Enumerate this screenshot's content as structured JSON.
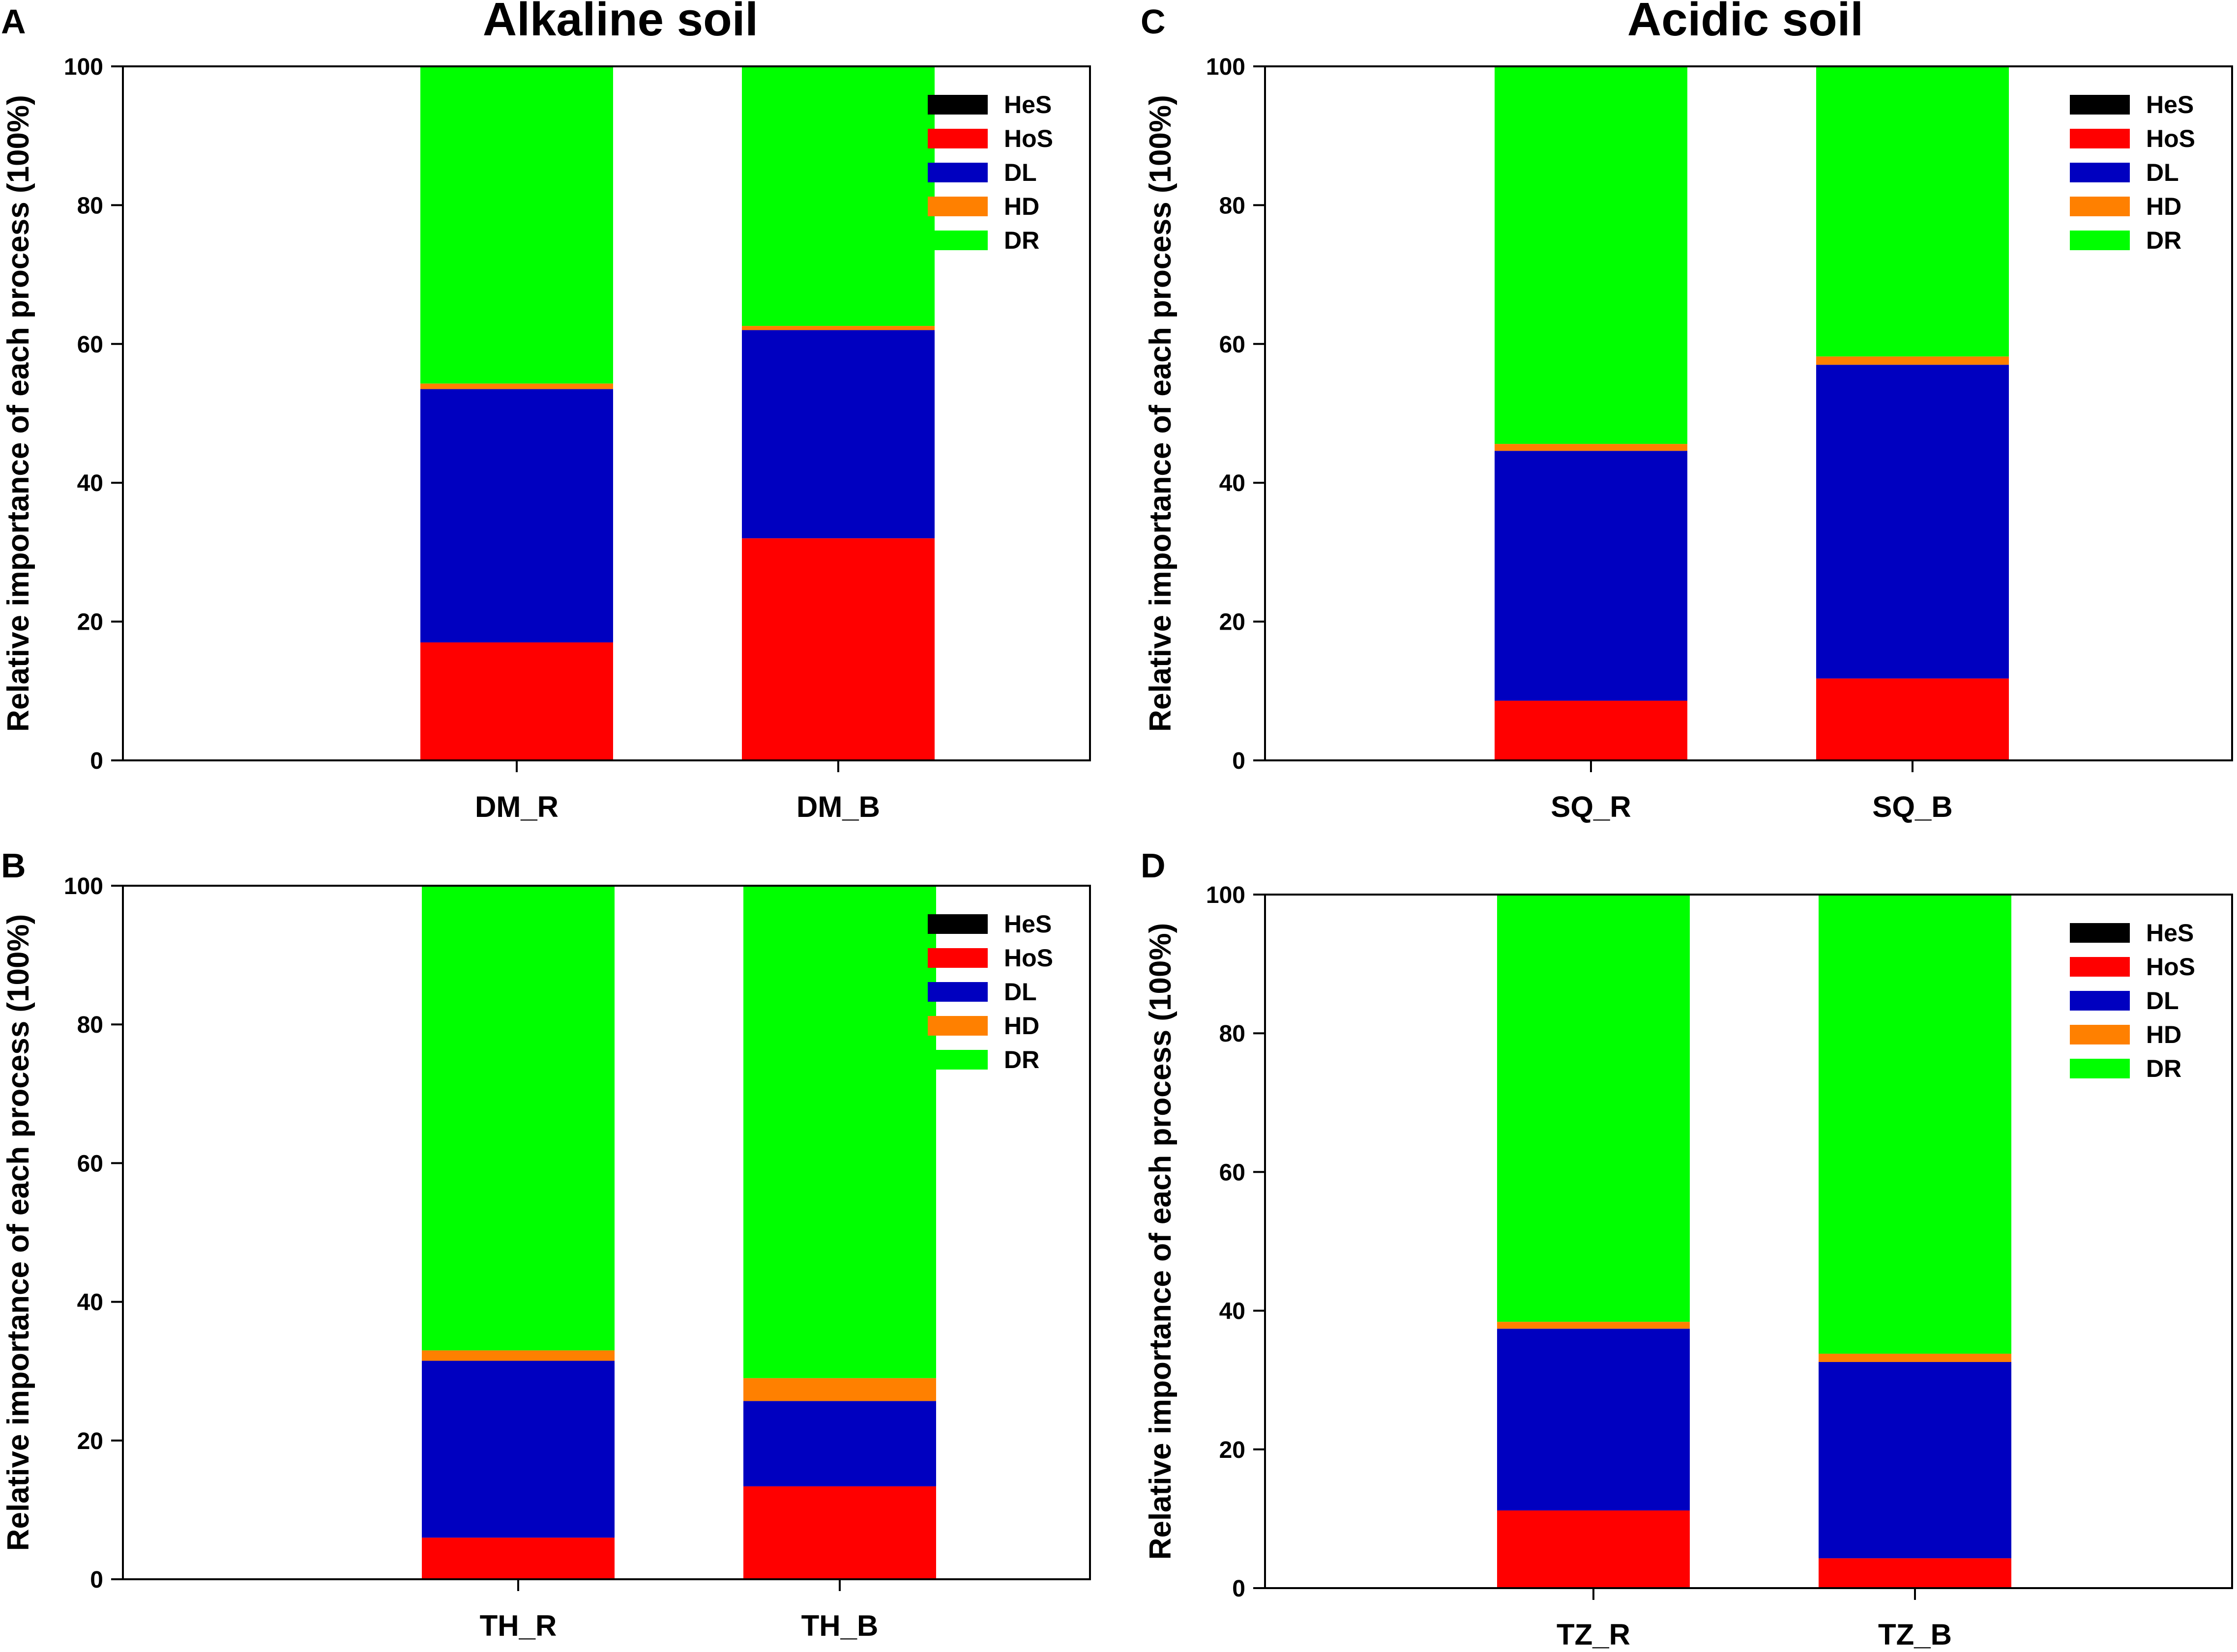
{
  "figure": {
    "titles": [
      {
        "id": "alkaline",
        "text": "Alkaline soil"
      },
      {
        "id": "acidic",
        "text": "Acidic soil"
      }
    ]
  },
  "chart_data": [
    {
      "type": "bar",
      "stacked": true,
      "panel": "A",
      "categories": [
        "DM_R",
        "DM_B"
      ],
      "ylabel": "Relative importance of each process (100%)",
      "ylim": [
        0,
        100
      ],
      "yticks": [
        0,
        20,
        40,
        60,
        80,
        100
      ],
      "legend_position": "top-right",
      "series": [
        {
          "name": "HeS",
          "color": "#000000",
          "values": [
            0,
            0
          ]
        },
        {
          "name": "HoS",
          "color": "#ff0000",
          "values": [
            17,
            32
          ]
        },
        {
          "name": "DL",
          "color": "#0000c0",
          "values": [
            36.5,
            30
          ]
        },
        {
          "name": "HD",
          "color": "#ff8000",
          "values": [
            0.8,
            0.6
          ]
        },
        {
          "name": "DR",
          "color": "#00ff00",
          "values": [
            45.7,
            37.4
          ]
        }
      ]
    },
    {
      "type": "bar",
      "stacked": true,
      "panel": "B",
      "categories": [
        "TH_R",
        "TH_B"
      ],
      "ylabel": "Relative importance of each process (100%)",
      "ylim": [
        0,
        100
      ],
      "yticks": [
        0,
        20,
        40,
        60,
        80,
        100
      ],
      "legend_position": "top-right",
      "series": [
        {
          "name": "HeS",
          "color": "#000000",
          "values": [
            0,
            0
          ]
        },
        {
          "name": "HoS",
          "color": "#ff0000",
          "values": [
            6,
            13.4
          ]
        },
        {
          "name": "DL",
          "color": "#0000c0",
          "values": [
            25.5,
            12.3
          ]
        },
        {
          "name": "HD",
          "color": "#ff8000",
          "values": [
            1.5,
            3.3
          ]
        },
        {
          "name": "DR",
          "color": "#00ff00",
          "values": [
            67,
            71
          ]
        }
      ]
    },
    {
      "type": "bar",
      "stacked": true,
      "panel": "C",
      "categories": [
        "SQ_R",
        "SQ_B"
      ],
      "ylabel": "Relative importance of each process (100%)",
      "ylim": [
        0,
        100
      ],
      "yticks": [
        0,
        20,
        40,
        60,
        80,
        100
      ],
      "legend_position": "top-right",
      "series": [
        {
          "name": "HeS",
          "color": "#000000",
          "values": [
            0,
            0
          ]
        },
        {
          "name": "HoS",
          "color": "#ff0000",
          "values": [
            8.6,
            11.8
          ]
        },
        {
          "name": "DL",
          "color": "#0000c0",
          "values": [
            36,
            45.2
          ]
        },
        {
          "name": "HD",
          "color": "#ff8000",
          "values": [
            1,
            1.2
          ]
        },
        {
          "name": "DR",
          "color": "#00ff00",
          "values": [
            54.4,
            41.8
          ]
        }
      ]
    },
    {
      "type": "bar",
      "stacked": true,
      "panel": "D",
      "categories": [
        "TZ_R",
        "TZ_B"
      ],
      "ylabel": "Relative importance of each process (100%)",
      "ylim": [
        0,
        100
      ],
      "yticks": [
        0,
        20,
        40,
        60,
        80,
        100
      ],
      "legend_position": "top-right",
      "series": [
        {
          "name": "HeS",
          "color": "#000000",
          "values": [
            0,
            0
          ]
        },
        {
          "name": "HoS",
          "color": "#ff0000",
          "values": [
            11.2,
            4.3
          ]
        },
        {
          "name": "DL",
          "color": "#0000c0",
          "values": [
            26.2,
            28.3
          ]
        },
        {
          "name": "HD",
          "color": "#ff8000",
          "values": [
            1,
            1.2
          ]
        },
        {
          "name": "DR",
          "color": "#00ff00",
          "values": [
            61.6,
            66.2
          ]
        }
      ]
    }
  ]
}
